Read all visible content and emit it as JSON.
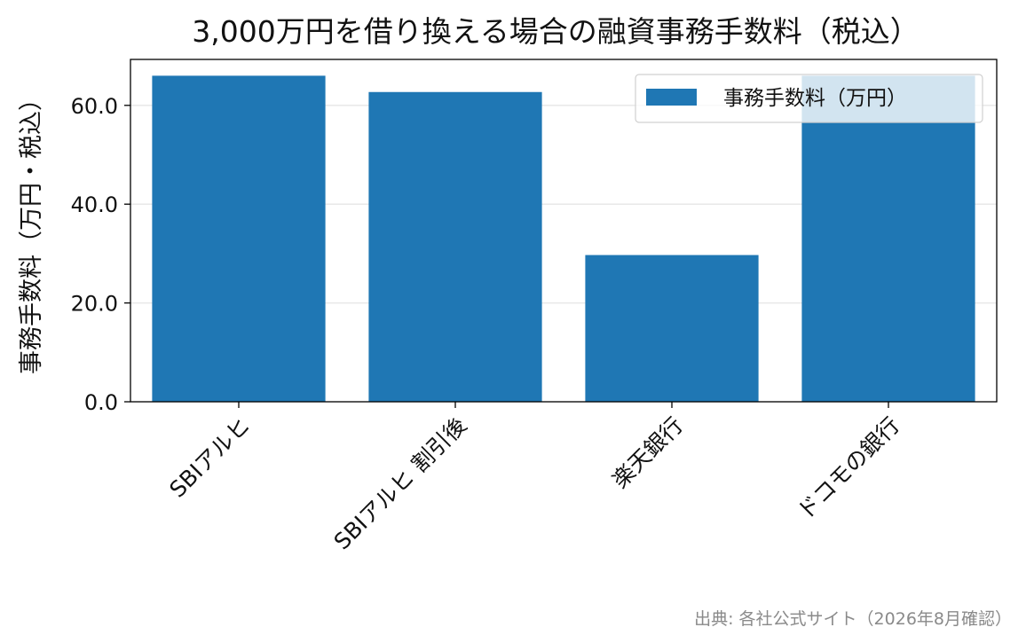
{
  "chart_data": {
    "type": "bar",
    "title": "3,000万円を借り換える場合の融資事務手数料（税込）",
    "ylabel": "事務手数料（万円・税込）",
    "xlabel": "",
    "categories": [
      "SBIアルヒ",
      "SBIアルヒ 割引後",
      "楽天銀行",
      "ドコモの銀行"
    ],
    "series": [
      {
        "name": "事務手数料（万円）",
        "values": [
          66.0,
          62.7,
          29.7,
          66.0
        ],
        "color": "#1f77b4"
      }
    ],
    "ylim": [
      0,
      69.3
    ],
    "yticks": [
      0,
      20,
      40,
      60
    ],
    "ytick_labels": [
      "0.0",
      "20.0",
      "40.0",
      "60.0"
    ],
    "grid": "y",
    "legend_position": "top-right",
    "note": "出典: 各社公式サイト（2026年8月確認）"
  }
}
